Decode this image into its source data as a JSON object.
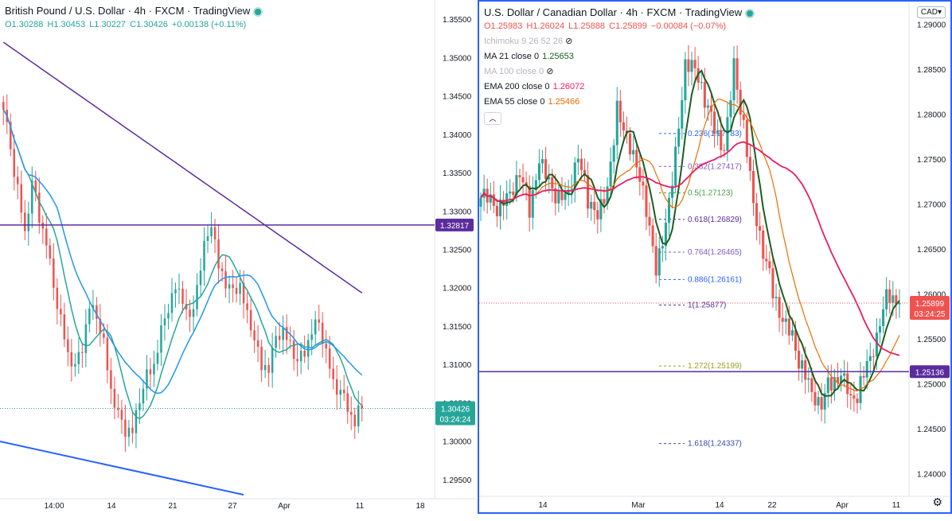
{
  "left": {
    "title": "British Pound / U.S. Dollar · 4h · FXCM · TradingView",
    "ohlc": {
      "o": "O1.30288",
      "h": "H1.30453",
      "l": "L1.30227",
      "c": "C1.30426",
      "chg": "+0.00138 (+0.11%)"
    },
    "yticks": [
      "1.35500",
      "1.35000",
      "1.34500",
      "1.34000",
      "1.33500",
      "1.33000",
      "1.32500",
      "1.32000",
      "1.31500",
      "1.31000",
      "1.30500",
      "1.30000",
      "1.29500"
    ],
    "xticks": [
      "14:00",
      "14",
      "21",
      "27",
      "Apr",
      "11",
      "18"
    ],
    "hline_label": "1.32817",
    "price_label": "1.30426",
    "timer": "03:24:24",
    "colors": {
      "up": "#26a69a",
      "down": "#ef5350",
      "ma_blue": "#2196f3",
      "ma_teal": "#26a69a",
      "ma_purple": "#5b2c9e",
      "hline": "#5b2c9e",
      "trend": "#2962ff"
    }
  },
  "right": {
    "title": "U.S. Dollar / Canadian Dollar · 4h · FXCM · TradingView",
    "ohlc": {
      "o": "O1.25983",
      "h": "H1.26024",
      "l": "L1.25888",
      "c": "C1.25899",
      "chg": "−0.00084 (−0.07%)"
    },
    "indicators": [
      {
        "label": "Ichimoku 9 26 52 26",
        "value": "",
        "color": "#b2b5be"
      },
      {
        "label": "MA 21 close 0",
        "value": "1.25653",
        "color": "#1b5e20"
      },
      {
        "label": "MA 100 close 0",
        "value": "",
        "color": "#b2b5be"
      },
      {
        "label": "EMA 200 close 0",
        "value": "1.26072",
        "color": "#e91e63"
      },
      {
        "label": "EMA 55 close 0",
        "value": "1.25466",
        "color": "#ef6c00"
      }
    ],
    "currency": "CAD",
    "yticks": [
      "1.29000",
      "1.28500",
      "1.28000",
      "1.27500",
      "1.27000",
      "1.26500",
      "1.26000",
      "1.25500",
      "1.25000",
      "1.24500",
      "1.24000"
    ],
    "xticks": [
      "14",
      "Mar",
      "14",
      "22",
      "Apr",
      "11"
    ],
    "fib": [
      {
        "label": "0.236(1.27783)",
        "color": "#2962ff"
      },
      {
        "label": "0.382(1.27417)",
        "color": "#7e57c2"
      },
      {
        "label": "0.5(1.27123)",
        "color": "#43a047"
      },
      {
        "label": "0.618(1.26829)",
        "color": "#5b2c9e"
      },
      {
        "label": "0.764(1.26465)",
        "color": "#7e57c2"
      },
      {
        "label": "0.886(1.26161)",
        "color": "#2962ff"
      },
      {
        "label": "1(1.25877)",
        "color": "#5b2c9e"
      },
      {
        "label": "1.272(1.25199)",
        "color": "#9e9d24"
      },
      {
        "label": "1.618(1.24337)",
        "color": "#3949ab"
      }
    ],
    "hline_label": "1.25136",
    "price_label": "1.25899",
    "timer": "03:24:25",
    "colors": {
      "up": "#26a69a",
      "down": "#ef5350",
      "ma21": "#1b5e20",
      "ema200": "#e91e63",
      "ema55": "#ef6c00",
      "hline": "#5b2c9e"
    }
  },
  "chart_data": [
    {
      "type": "candlestick",
      "title": "British Pound / U.S. Dollar · 4h · FXCM",
      "ylim": [
        1.2925,
        1.3575
      ],
      "approx_close_path": [
        1.3425,
        1.338,
        1.332,
        1.328,
        1.334,
        1.33,
        1.325,
        1.32,
        1.315,
        1.312,
        1.31,
        1.313,
        1.317,
        1.316,
        1.312,
        1.307,
        1.304,
        1.302,
        1.301,
        1.305,
        1.308,
        1.31,
        1.315,
        1.318,
        1.32,
        1.318,
        1.315,
        1.32,
        1.326,
        1.329,
        1.323,
        1.32,
        1.319,
        1.32,
        1.317,
        1.314,
        1.31,
        1.309,
        1.313,
        1.314,
        1.313,
        1.311,
        1.312,
        1.314,
        1.315,
        1.311,
        1.308,
        1.307,
        1.305,
        1.302,
        1.3043
      ],
      "horizontal_line": 1.32817,
      "last_price": 1.30426
    },
    {
      "type": "candlestick",
      "title": "U.S. Dollar / Canadian Dollar · 4h · FXCM",
      "ylim": [
        1.2375,
        1.2925
      ],
      "approx_close_path": [
        1.27,
        1.271,
        1.269,
        1.272,
        1.273,
        1.27,
        1.274,
        1.273,
        1.27,
        1.272,
        1.275,
        1.271,
        1.268,
        1.272,
        1.28,
        1.278,
        1.274,
        1.27,
        1.262,
        1.268,
        1.275,
        1.286,
        1.285,
        1.282,
        1.278,
        1.276,
        1.285,
        1.279,
        1.27,
        1.265,
        1.26,
        1.257,
        1.255,
        1.252,
        1.249,
        1.248,
        1.25,
        1.251,
        1.248,
        1.25,
        1.253,
        1.257,
        1.26,
        1.259
      ],
      "fibonacci": [
        {
          "level": 0.236,
          "price": 1.27783
        },
        {
          "level": 0.382,
          "price": 1.27417
        },
        {
          "level": 0.5,
          "price": 1.27123
        },
        {
          "level": 0.618,
          "price": 1.26829
        },
        {
          "level": 0.764,
          "price": 1.26465
        },
        {
          "level": 0.886,
          "price": 1.26161
        },
        {
          "level": 1,
          "price": 1.25877
        },
        {
          "level": 1.272,
          "price": 1.25199
        },
        {
          "level": 1.618,
          "price": 1.24337
        }
      ],
      "horizontal_line": 1.25136,
      "last_price": 1.25899
    }
  ]
}
